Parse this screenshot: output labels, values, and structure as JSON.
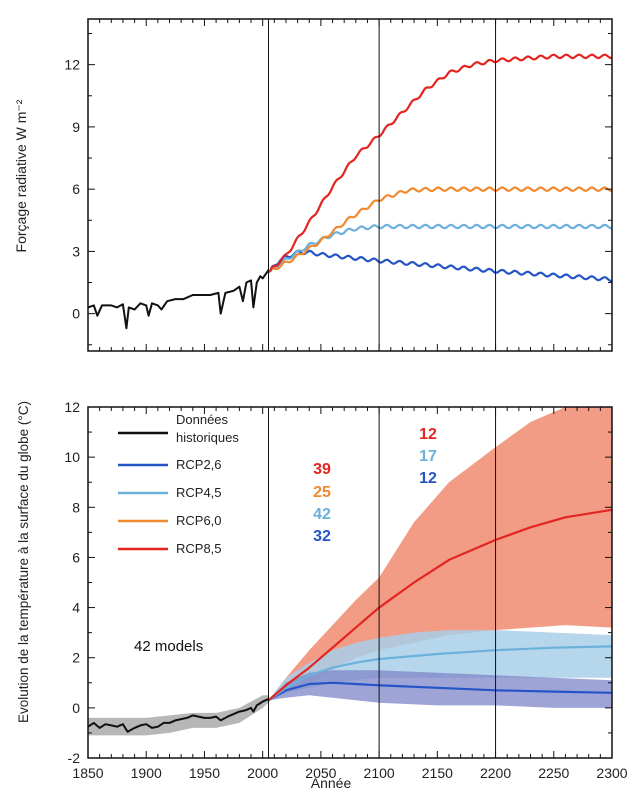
{
  "chart_data": [
    {
      "type": "line",
      "ylabel": "Forçage radiative W m⁻²",
      "xlabel": "",
      "xlim": [
        1850,
        2300
      ],
      "ylim": [
        -1.8,
        14.2
      ],
      "yticks": [
        0,
        3,
        6,
        9,
        12
      ],
      "xticks": [
        1850,
        1900,
        1950,
        2000,
        2050,
        2100,
        2150,
        2200,
        2250,
        2300
      ],
      "vlines": [
        2005,
        2100,
        2200
      ],
      "series": [
        {
          "key": "hist",
          "color": "#111111",
          "values": [
            [
              1850,
              0.3
            ],
            [
              1855,
              0.4
            ],
            [
              1858,
              -0.1
            ],
            [
              1862,
              0.4
            ],
            [
              1870,
              0.4
            ],
            [
              1875,
              0.3
            ],
            [
              1880,
              0.45
            ],
            [
              1883,
              -0.7
            ],
            [
              1885,
              0.3
            ],
            [
              1890,
              0.2
            ],
            [
              1895,
              0.5
            ],
            [
              1900,
              0.4
            ],
            [
              1902,
              -0.1
            ],
            [
              1905,
              0.5
            ],
            [
              1910,
              0.4
            ],
            [
              1913,
              0.2
            ],
            [
              1918,
              0.6
            ],
            [
              1925,
              0.7
            ],
            [
              1932,
              0.7
            ],
            [
              1940,
              0.9
            ],
            [
              1948,
              0.9
            ],
            [
              1955,
              0.9
            ],
            [
              1962,
              1.0
            ],
            [
              1964,
              0.0
            ],
            [
              1968,
              1.0
            ],
            [
              1975,
              1.1
            ],
            [
              1980,
              1.3
            ],
            [
              1983,
              0.6
            ],
            [
              1986,
              1.5
            ],
            [
              1990,
              1.6
            ],
            [
              1992,
              0.3
            ],
            [
              1995,
              1.5
            ],
            [
              1998,
              1.8
            ],
            [
              2000,
              1.7
            ],
            [
              2005,
              2.1
            ]
          ]
        },
        {
          "key": "rcp26",
          "color": "#2554c7",
          "values": [
            [
              2005,
              2.0
            ],
            [
              2015,
              2.6
            ],
            [
              2030,
              2.95
            ],
            [
              2040,
              2.95
            ],
            [
              2050,
              2.85
            ],
            [
              2075,
              2.7
            ],
            [
              2100,
              2.55
            ],
            [
              2150,
              2.3
            ],
            [
              2200,
              2.05
            ],
            [
              2250,
              1.85
            ],
            [
              2300,
              1.65
            ]
          ]
        },
        {
          "key": "rcp45",
          "color": "#6cb0dc",
          "values": [
            [
              2005,
              2.0
            ],
            [
              2020,
              2.6
            ],
            [
              2040,
              3.3
            ],
            [
              2060,
              3.8
            ],
            [
              2080,
              4.1
            ],
            [
              2100,
              4.2
            ],
            [
              2150,
              4.2
            ],
            [
              2200,
              4.2
            ],
            [
              2300,
              4.2
            ]
          ]
        },
        {
          "key": "rcp60",
          "color": "#f08a30",
          "values": [
            [
              2005,
              2.0
            ],
            [
              2025,
              2.6
            ],
            [
              2050,
              3.5
            ],
            [
              2075,
              4.6
            ],
            [
              2100,
              5.5
            ],
            [
              2125,
              5.95
            ],
            [
              2150,
              6.0
            ],
            [
              2200,
              6.0
            ],
            [
              2300,
              6.0
            ]
          ]
        },
        {
          "key": "rcp85",
          "color": "#e32522",
          "values": [
            [
              2005,
              2.0
            ],
            [
              2020,
              2.8
            ],
            [
              2040,
              4.4
            ],
            [
              2060,
              6.1
            ],
            [
              2080,
              7.6
            ],
            [
              2100,
              8.6
            ],
            [
              2120,
              9.7
            ],
            [
              2140,
              10.8
            ],
            [
              2160,
              11.6
            ],
            [
              2180,
              12.0
            ],
            [
              2200,
              12.2
            ],
            [
              2250,
              12.4
            ],
            [
              2300,
              12.4
            ]
          ]
        }
      ]
    },
    {
      "type": "line",
      "ylabel": "Evolution de la température à la surface du globe (°C)",
      "xlabel": "Année",
      "xlim": [
        1850,
        2300
      ],
      "ylim": [
        -2,
        12
      ],
      "yticks": [
        -2,
        0,
        2,
        4,
        6,
        8,
        10,
        12
      ],
      "xticks": [
        1850,
        1900,
        1950,
        2000,
        2050,
        2100,
        2150,
        2200,
        2250,
        2300
      ],
      "vlines": [
        2005,
        2100,
        2200
      ],
      "bands": [
        {
          "key": "rcp85",
          "color": "#f08a70",
          "x": [
            2005,
            2020,
            2040,
            2060,
            2080,
            2100,
            2130,
            2160,
            2200,
            2230,
            2260,
            2300
          ],
          "low": [
            0.3,
            0.6,
            1.0,
            1.5,
            2.0,
            2.3,
            2.6,
            2.9,
            3.1,
            3.2,
            3.3,
            3.2
          ],
          "high": [
            0.3,
            1.2,
            2.3,
            3.3,
            4.3,
            5.2,
            7.4,
            9.0,
            10.4,
            11.4,
            12.0,
            12.0
          ]
        },
        {
          "key": "rcp45",
          "color": "#a9cfe9",
          "x": [
            2005,
            2020,
            2040,
            2060,
            2080,
            2100,
            2130,
            2160,
            2200,
            2250,
            2300
          ],
          "low": [
            0.3,
            0.6,
            0.8,
            1.0,
            1.1,
            1.2,
            1.2,
            1.2,
            1.2,
            1.2,
            1.2
          ],
          "high": [
            0.3,
            1.2,
            1.8,
            2.3,
            2.6,
            2.8,
            3.0,
            3.1,
            3.1,
            3.0,
            2.9
          ]
        },
        {
          "key": "rcp26",
          "color": "#7f86c9",
          "x": [
            2005,
            2020,
            2040,
            2060,
            2080,
            2100,
            2150,
            2200,
            2250,
            2300
          ],
          "low": [
            0.3,
            0.4,
            0.5,
            0.4,
            0.3,
            0.2,
            0.1,
            0.1,
            0.0,
            0.0
          ],
          "high": [
            0.3,
            1.0,
            1.4,
            1.5,
            1.5,
            1.5,
            1.4,
            1.3,
            1.2,
            1.1
          ]
        },
        {
          "key": "hist",
          "color": "#aaaaaa",
          "x": [
            1850,
            1880,
            1900,
            1920,
            1940,
            1960,
            1980,
            2000,
            2005
          ],
          "low": [
            -1.1,
            -1.1,
            -1.1,
            -1.0,
            -0.8,
            -0.8,
            -0.6,
            0.0,
            0.2
          ],
          "high": [
            -0.4,
            -0.4,
            -0.4,
            -0.3,
            -0.2,
            -0.2,
            0.0,
            0.5,
            0.5
          ]
        }
      ],
      "series": [
        {
          "key": "hist",
          "color": "#111111",
          "values": [
            [
              1850,
              -0.75
            ],
            [
              1855,
              -0.6
            ],
            [
              1860,
              -0.8
            ],
            [
              1865,
              -0.65
            ],
            [
              1870,
              -0.7
            ],
            [
              1875,
              -0.75
            ],
            [
              1880,
              -0.65
            ],
            [
              1884,
              -0.95
            ],
            [
              1890,
              -0.8
            ],
            [
              1895,
              -0.7
            ],
            [
              1900,
              -0.65
            ],
            [
              1905,
              -0.8
            ],
            [
              1910,
              -0.75
            ],
            [
              1915,
              -0.6
            ],
            [
              1920,
              -0.6
            ],
            [
              1925,
              -0.5
            ],
            [
              1930,
              -0.45
            ],
            [
              1935,
              -0.4
            ],
            [
              1940,
              -0.3
            ],
            [
              1945,
              -0.35
            ],
            [
              1950,
              -0.4
            ],
            [
              1955,
              -0.4
            ],
            [
              1960,
              -0.35
            ],
            [
              1964,
              -0.5
            ],
            [
              1970,
              -0.35
            ],
            [
              1975,
              -0.25
            ],
            [
              1980,
              -0.15
            ],
            [
              1985,
              -0.1
            ],
            [
              1990,
              0.0
            ],
            [
              1992,
              -0.15
            ],
            [
              1995,
              0.1
            ],
            [
              2000,
              0.25
            ],
            [
              2005,
              0.35
            ]
          ]
        },
        {
          "key": "rcp26",
          "color": "#2554c7",
          "values": [
            [
              2005,
              0.3
            ],
            [
              2020,
              0.7
            ],
            [
              2040,
              0.95
            ],
            [
              2060,
              1.0
            ],
            [
              2080,
              0.95
            ],
            [
              2100,
              0.9
            ],
            [
              2150,
              0.8
            ],
            [
              2200,
              0.7
            ],
            [
              2250,
              0.65
            ],
            [
              2300,
              0.6
            ]
          ]
        },
        {
          "key": "rcp45",
          "color": "#6cb0dc",
          "values": [
            [
              2005,
              0.3
            ],
            [
              2020,
              0.8
            ],
            [
              2040,
              1.3
            ],
            [
              2060,
              1.6
            ],
            [
              2080,
              1.8
            ],
            [
              2100,
              1.95
            ],
            [
              2150,
              2.15
            ],
            [
              2200,
              2.3
            ],
            [
              2250,
              2.4
            ],
            [
              2300,
              2.45
            ]
          ]
        },
        {
          "key": "rcp85",
          "color": "#e32522",
          "values": [
            [
              2005,
              0.3
            ],
            [
              2020,
              0.9
            ],
            [
              2040,
              1.6
            ],
            [
              2060,
              2.4
            ],
            [
              2080,
              3.2
            ],
            [
              2100,
              4.0
            ],
            [
              2130,
              5.0
            ],
            [
              2160,
              5.9
            ],
            [
              2200,
              6.7
            ],
            [
              2230,
              7.2
            ],
            [
              2260,
              7.6
            ],
            [
              2300,
              7.9
            ]
          ]
        }
      ],
      "legend": {
        "position": "top-left",
        "entries": [
          {
            "label_lines": [
              "Données",
              "historiques"
            ],
            "color": "#111111"
          },
          {
            "label_lines": [
              "RCP2,6"
            ],
            "color": "#2554c7"
          },
          {
            "label_lines": [
              "RCP4,5"
            ],
            "color": "#6cb0dc"
          },
          {
            "label_lines": [
              "RCP6,0"
            ],
            "color": "#f08a30"
          },
          {
            "label_lines": [
              "RCP8,5"
            ],
            "color": "#e32522"
          }
        ]
      },
      "model_counts": {
        "year_2100": [
          {
            "value": "39",
            "color": "#e32522"
          },
          {
            "value": "25",
            "color": "#f08a30"
          },
          {
            "value": "42",
            "color": "#6cb0dc"
          },
          {
            "value": "32",
            "color": "#2554c7"
          }
        ],
        "year_2300": [
          {
            "value": "12",
            "color": "#e32522"
          },
          {
            "value": "17",
            "color": "#6cb0dc"
          },
          {
            "value": "12",
            "color": "#2554c7"
          }
        ]
      },
      "annotation": "42 models"
    }
  ]
}
